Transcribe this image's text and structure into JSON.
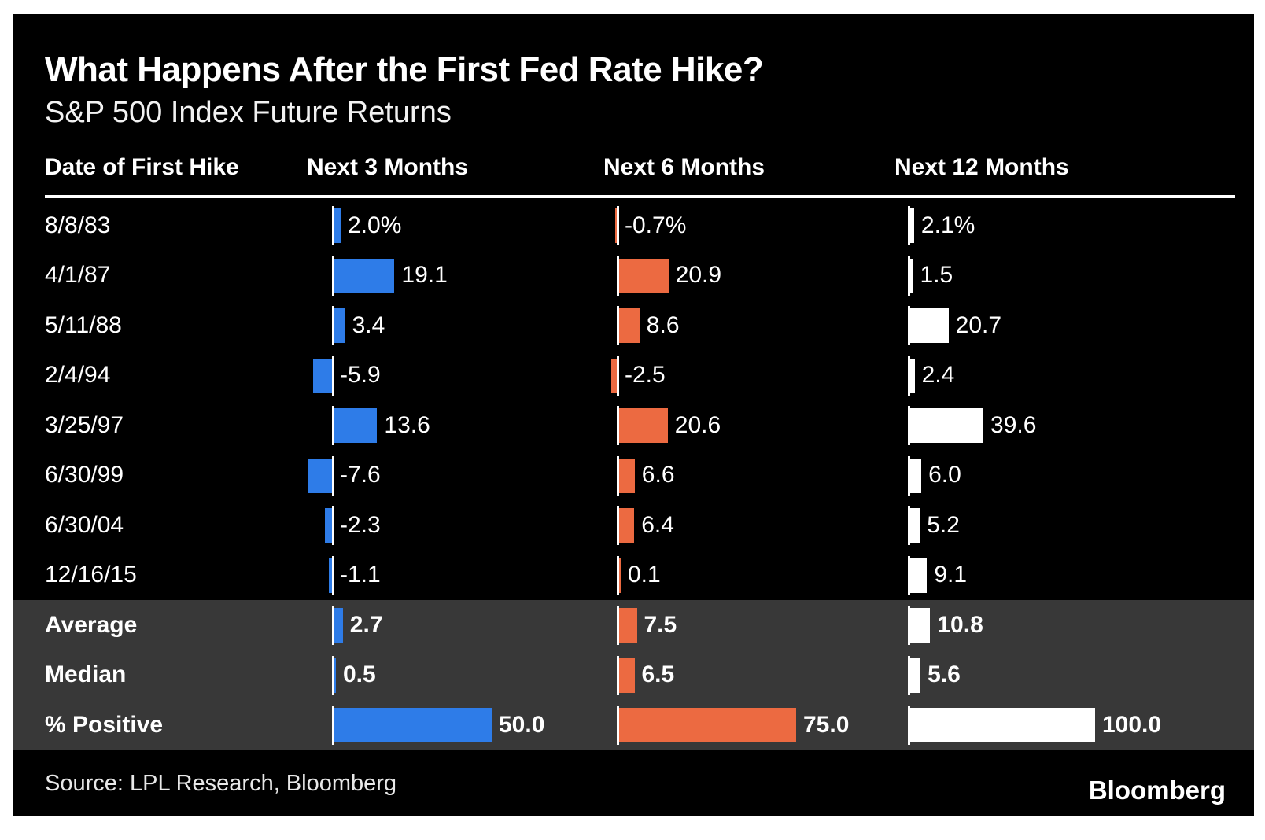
{
  "meta": {
    "title": "What Happens After the First Fed Rate Hike?",
    "subtitle": "S&P 500 Index Future Returns",
    "source": "Source: LPL Research, Bloomberg",
    "logo": "Bloomberg"
  },
  "chart_data": {
    "type": "bar",
    "orientation": "horizontal",
    "title": "What Happens After the First Fed Rate Hike?",
    "subtitle": "S&P 500 Index Future Returns",
    "columns": [
      "Date of First Hike",
      "Next 3 Months",
      "Next 6 Months",
      "Next 12 Months"
    ],
    "series_colors": [
      "#2E7CE8",
      "#EC6A41",
      "#FFFFFF"
    ],
    "background": "#000000",
    "summary_band_color": "#383838",
    "rows": [
      {
        "label": "8/8/83",
        "values": [
          2.0,
          -0.7,
          2.1
        ],
        "display": [
          "2.0%",
          "-0.7%",
          "2.1%"
        ]
      },
      {
        "label": "4/1/87",
        "values": [
          19.1,
          20.9,
          1.5
        ],
        "display": [
          "19.1",
          "20.9",
          "1.5"
        ]
      },
      {
        "label": "5/11/88",
        "values": [
          3.4,
          8.6,
          20.7
        ],
        "display": [
          "3.4",
          "8.6",
          "20.7"
        ]
      },
      {
        "label": "2/4/94",
        "values": [
          -5.9,
          -2.5,
          2.4
        ],
        "display": [
          "-5.9",
          "-2.5",
          "2.4"
        ]
      },
      {
        "label": "3/25/97",
        "values": [
          13.6,
          20.6,
          39.6
        ],
        "display": [
          "13.6",
          "20.6",
          "39.6"
        ]
      },
      {
        "label": "6/30/99",
        "values": [
          -7.6,
          6.6,
          6.0
        ],
        "display": [
          "-7.6",
          "6.6",
          "6.0"
        ]
      },
      {
        "label": "6/30/04",
        "values": [
          -2.3,
          6.4,
          5.2
        ],
        "display": [
          "-2.3",
          "6.4",
          "5.2"
        ]
      },
      {
        "label": "12/16/15",
        "values": [
          -1.1,
          0.1,
          9.1
        ],
        "display": [
          "-1.1",
          "0.1",
          "9.1"
        ]
      }
    ],
    "summary_rows": [
      {
        "label": "Average",
        "values": [
          2.7,
          7.5,
          10.8
        ],
        "display": [
          "2.7",
          "7.5",
          "10.8"
        ]
      },
      {
        "label": "Median",
        "values": [
          0.5,
          6.5,
          5.6
        ],
        "display": [
          "0.5",
          "6.5",
          "5.6"
        ]
      },
      {
        "label": "% Positive",
        "values": [
          50.0,
          75.0,
          100.0
        ],
        "display": [
          "50.0",
          "75.0",
          "100.0"
        ]
      }
    ]
  }
}
